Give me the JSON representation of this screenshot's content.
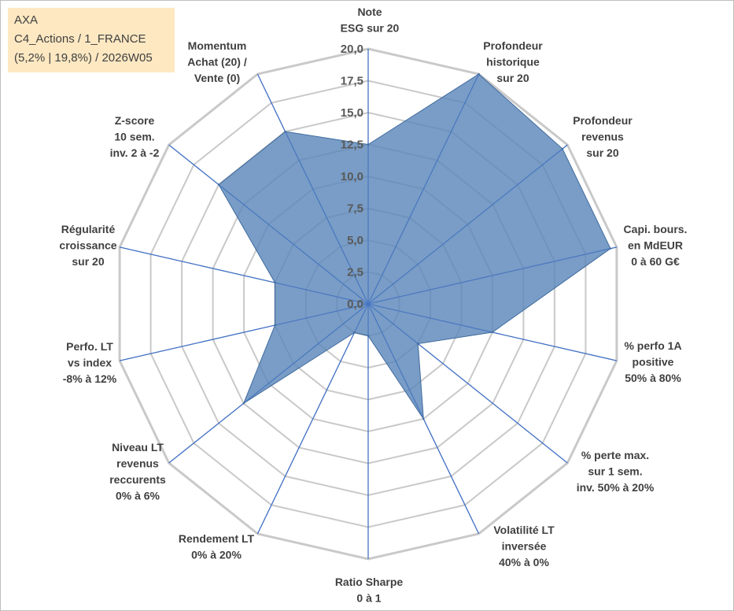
{
  "header": {
    "line1": "AXA",
    "line2": "C4_Actions / 1_FRANCE",
    "line3": "(5,2% | 19,8%) / 2026W05"
  },
  "colors": {
    "fill": "#5b87b9",
    "stroke": "#3f6a9e",
    "spoke": "#4472c4",
    "grid": "#c9c9c9",
    "info_bg": "#fde8c2"
  },
  "chart_data": {
    "type": "radar",
    "title": "AXA",
    "rmin": 0,
    "rmax": 20,
    "ticks": [
      "0,0",
      "2,5",
      "5,0",
      "7,5",
      "10,0",
      "12,5",
      "15,0",
      "17,5",
      "20,0"
    ],
    "categories": [
      {
        "label": [
          "Note",
          "ESG sur 20"
        ],
        "value": 12.5
      },
      {
        "label": [
          "Profondeur",
          "historique",
          "sur 20"
        ],
        "value": 20
      },
      {
        "label": [
          "Profondeur",
          "revenus",
          "sur 20"
        ],
        "value": 19.5
      },
      {
        "label": [
          "Capi. bours.",
          "en MdEUR",
          "0 à 60 G€"
        ],
        "value": 19.5
      },
      {
        "label": [
          "% perfo 1A",
          "positive",
          "50% à 80%"
        ],
        "value": 10
      },
      {
        "label": [
          "% perte max.",
          "sur 1 sem.",
          "inv. 50% à 20%"
        ],
        "value": 5
      },
      {
        "label": [
          "Volatilité LT",
          "inversée",
          "40% à 0%"
        ],
        "value": 10
      },
      {
        "label": [
          "Ratio Sharpe",
          "0 à 1"
        ],
        "value": 2.5
      },
      {
        "label": [
          "Rendement LT",
          "0% à 20%"
        ],
        "value": 2.5
      },
      {
        "label": [
          "Niveau LT",
          "revenus",
          "reccurents",
          "0% à 6%"
        ],
        "value": 12.5
      },
      {
        "label": [
          "Perfo. LT",
          "vs index",
          "-8% à 12%"
        ],
        "value": 7.5
      },
      {
        "label": [
          "Régularité",
          "croissance",
          "sur 20"
        ],
        "value": 7.5
      },
      {
        "label": [
          "Z-score",
          "10 sem.",
          "inv. 2 à -2"
        ],
        "value": 15
      },
      {
        "label": [
          "Momentum",
          "Achat (20) /",
          "Vente (0)"
        ],
        "value": 15
      }
    ]
  }
}
